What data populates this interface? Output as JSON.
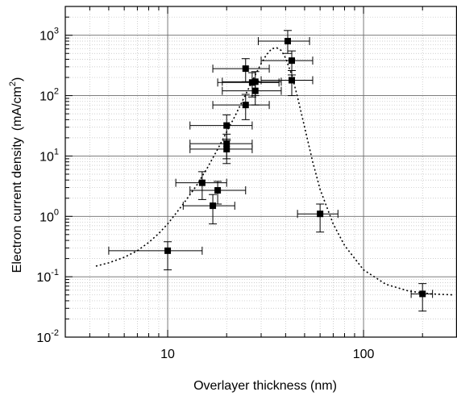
{
  "chart_data": {
    "type": "scatter",
    "title": "",
    "xlabel": "Overlayer thickness (nm)",
    "ylabel": "Electron current density",
    "ylabel_unit_prefix": "(mA/cm",
    "ylabel_unit_exponent": "2",
    "ylabel_unit_suffix": ")",
    "x_scale": "log",
    "y_scale": "log",
    "xlim": [
      3,
      300
    ],
    "ylim": [
      0.01,
      3000
    ],
    "grid": true,
    "x_tick_labels": [
      {
        "value": 10,
        "label": "10"
      },
      {
        "value": 100,
        "label": "100"
      }
    ],
    "y_tick_labels": [
      {
        "value": 0.01,
        "base": "10",
        "exp": "-2"
      },
      {
        "value": 0.1,
        "base": "10",
        "exp": "-1"
      },
      {
        "value": 1,
        "base": "10",
        "exp": "0"
      },
      {
        "value": 10,
        "base": "10",
        "exp": "1"
      },
      {
        "value": 100,
        "base": "10",
        "exp": "2"
      },
      {
        "value": 1000,
        "base": "10",
        "exp": "3"
      }
    ],
    "series": [
      {
        "points": [
          {
            "x": 10,
            "y": 0.27,
            "xerr": [
              5,
              15
            ],
            "yerr": [
              0.13,
              0.38
            ]
          },
          {
            "x": 15,
            "y": 3.6,
            "xerr": [
              11,
              20
            ],
            "yerr": [
              1.9,
              5.5
            ]
          },
          {
            "x": 17,
            "y": 1.5,
            "xerr": [
              12,
              22
            ],
            "yerr": [
              0.75,
              2.3
            ]
          },
          {
            "x": 18,
            "y": 2.7,
            "xerr": [
              13,
              25
            ],
            "yerr": [
              1.6,
              3.8
            ]
          },
          {
            "x": 20,
            "y": 32,
            "xerr": [
              13,
              27
            ],
            "yerr": [
              18,
              48
            ]
          },
          {
            "x": 20,
            "y": 16,
            "xerr": [
              13,
              27
            ],
            "yerr": [
              9,
              23
            ]
          },
          {
            "x": 20,
            "y": 13,
            "xerr": [
              13,
              27
            ],
            "yerr": [
              7.5,
              19
            ]
          },
          {
            "x": 25,
            "y": 280,
            "xerr": [
              17,
              33
            ],
            "yerr": [
              170,
              410
            ]
          },
          {
            "x": 25,
            "y": 70,
            "xerr": [
              17,
              33
            ],
            "yerr": [
              40,
              105
            ]
          },
          {
            "x": 27,
            "y": 165,
            "xerr": [
              18,
              37
            ],
            "yerr": [
              95,
              240
            ]
          },
          {
            "x": 28,
            "y": 120,
            "xerr": [
              19,
              38
            ],
            "yerr": [
              70,
              175
            ]
          },
          {
            "x": 28,
            "y": 170,
            "xerr": [
              19,
              38
            ],
            "yerr": [
              100,
              250
            ]
          },
          {
            "x": 41,
            "y": 800,
            "xerr": [
              29,
              53
            ],
            "yerr": [
              500,
              1200
            ]
          },
          {
            "x": 43,
            "y": 380,
            "xerr": [
              30,
              55
            ],
            "yerr": [
              220,
              550
            ]
          },
          {
            "x": 43,
            "y": 180,
            "xerr": [
              30,
              55
            ],
            "yerr": [
              100,
              260
            ]
          },
          {
            "x": 60,
            "y": 1.1,
            "xerr": [
              46,
              74
            ],
            "yerr": [
              0.55,
              1.6
            ]
          },
          {
            "x": 200,
            "y": 0.052,
            "xerr": [
              175,
              225
            ],
            "yerr": [
              0.027,
              0.077
            ]
          }
        ]
      }
    ],
    "fit_curve": {
      "style": "dotted",
      "points": [
        {
          "x": 4.3,
          "y": 0.15
        },
        {
          "x": 5,
          "y": 0.17
        },
        {
          "x": 6,
          "y": 0.21
        },
        {
          "x": 7,
          "y": 0.27
        },
        {
          "x": 8,
          "y": 0.37
        },
        {
          "x": 9,
          "y": 0.52
        },
        {
          "x": 10,
          "y": 0.75
        },
        {
          "x": 12,
          "y": 1.6
        },
        {
          "x": 14,
          "y": 3.2
        },
        {
          "x": 16,
          "y": 6.5
        },
        {
          "x": 18,
          "y": 13
        },
        {
          "x": 20,
          "y": 25
        },
        {
          "x": 22,
          "y": 45
        },
        {
          "x": 24,
          "y": 80
        },
        {
          "x": 26,
          "y": 135
        },
        {
          "x": 28,
          "y": 220
        },
        {
          "x": 30,
          "y": 340
        },
        {
          "x": 32,
          "y": 480
        },
        {
          "x": 34,
          "y": 600
        },
        {
          "x": 36,
          "y": 620
        },
        {
          "x": 38,
          "y": 560
        },
        {
          "x": 40,
          "y": 420
        },
        {
          "x": 43,
          "y": 220
        },
        {
          "x": 46,
          "y": 95
        },
        {
          "x": 50,
          "y": 30
        },
        {
          "x": 55,
          "y": 8
        },
        {
          "x": 60,
          "y": 2.8
        },
        {
          "x": 70,
          "y": 0.75
        },
        {
          "x": 80,
          "y": 0.33
        },
        {
          "x": 100,
          "y": 0.13
        },
        {
          "x": 130,
          "y": 0.075
        },
        {
          "x": 170,
          "y": 0.058
        },
        {
          "x": 220,
          "y": 0.052
        },
        {
          "x": 290,
          "y": 0.05
        }
      ]
    }
  }
}
